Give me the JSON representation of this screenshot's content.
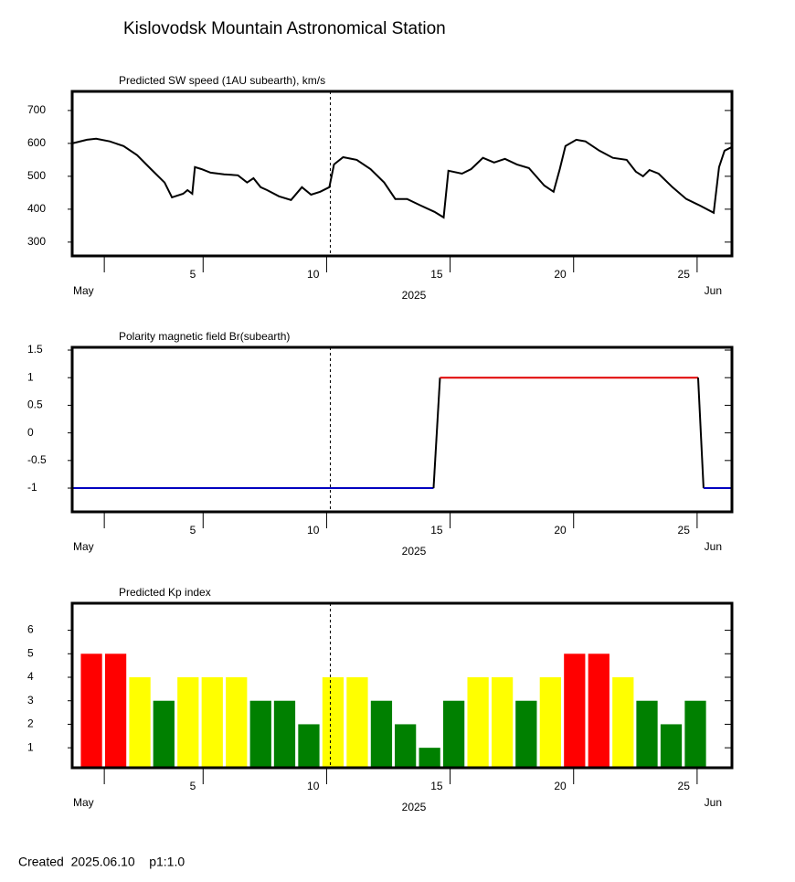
{
  "title": "Kislovodsk Mountain Astronomical Station",
  "footer": "Created  2025.06.10    p1:1.0",
  "chart_data": [
    {
      "type": "line",
      "title": "Predicted SW speed (1AU subearth), km/s",
      "xlim": [
        -0.3,
        26.41
      ],
      "xticks": [
        {
          "value": 1,
          "label": null
        },
        5,
        10,
        15,
        20,
        25
      ],
      "month_labels": [
        "May",
        "Jun"
      ],
      "xlabel": "2025",
      "marker_x": 10.15,
      "ylim": [
        258,
        758
      ],
      "yticks": [
        300,
        400,
        500,
        600,
        700
      ],
      "series": [
        {
          "color": "#000000",
          "x": [
            -0.3,
            0.3,
            0.67,
            1.22,
            1.78,
            2.33,
            2.89,
            3.44,
            3.74,
            4.19,
            4.37,
            4.56,
            4.67,
            4.93,
            5.3,
            5.85,
            6.41,
            6.78,
            7.04,
            7.33,
            7.59,
            8.07,
            8.56,
            9.0,
            9.37,
            9.74,
            10.11,
            10.3,
            10.67,
            11.22,
            11.78,
            12.33,
            12.78,
            13.26,
            13.81,
            14.37,
            14.74,
            14.93,
            15.48,
            15.85,
            16.33,
            16.78,
            17.22,
            17.7,
            18.19,
            18.81,
            19.19,
            19.44,
            19.67,
            20.11,
            20.48,
            21.04,
            21.59,
            22.15,
            22.52,
            22.81,
            23.07,
            23.44,
            24.0,
            24.56,
            25.11,
            25.67,
            25.89,
            26.11,
            26.41
          ],
          "values": [
            600,
            611,
            614,
            606,
            592,
            564,
            522,
            481,
            436,
            447,
            458,
            447,
            528,
            522,
            511,
            506,
            503,
            481,
            494,
            467,
            458,
            439,
            428,
            467,
            444,
            453,
            467,
            536,
            558,
            550,
            522,
            481,
            431,
            431,
            411,
            392,
            375,
            517,
            508,
            522,
            556,
            542,
            553,
            536,
            525,
            472,
            453,
            522,
            592,
            611,
            606,
            578,
            556,
            550,
            514,
            500,
            519,
            508,
            467,
            431,
            411,
            389,
            528,
            578,
            589
          ]
        }
      ]
    },
    {
      "type": "line",
      "title": "Polarity magnetic field  Br(subearth)",
      "xlim": [
        -0.3,
        26.41
      ],
      "xticks": [
        {
          "value": 1,
          "label": null
        },
        5,
        10,
        15,
        20,
        25
      ],
      "month_labels": [
        "May",
        "Jun"
      ],
      "xlabel": "2025",
      "marker_x": 10.15,
      "ylim": [
        -1.43,
        1.55
      ],
      "yticks": [
        -1,
        -0.5,
        0,
        0.5,
        1,
        1.5
      ],
      "series": [
        {
          "color": "#000000",
          "positive_color": "#e00000",
          "negative_color": "#0000c0",
          "x": [
            -0.3,
            14.33,
            14.59,
            25.04,
            25.26,
            26.41
          ],
          "values": [
            -1,
            -1,
            1,
            1,
            -1,
            -1
          ]
        }
      ]
    },
    {
      "type": "bar",
      "title": "Predicted Kp index",
      "xlim": [
        -0.3,
        26.41
      ],
      "xticks": [
        {
          "value": 1,
          "label": null
        },
        5,
        10,
        15,
        20,
        25
      ],
      "month_labels": [
        "May",
        "Jun"
      ],
      "xlabel": "2025",
      "marker_x": 10.15,
      "ylim": [
        0.15,
        7.15
      ],
      "yticks": [
        1,
        2,
        3,
        4,
        5,
        6
      ],
      "x": [
        0.48,
        1.46,
        2.44,
        3.41,
        4.39,
        5.37,
        6.35,
        7.33,
        8.3,
        9.28,
        10.26,
        11.24,
        12.22,
        13.19,
        14.17,
        15.15,
        16.13,
        17.11,
        18.08,
        19.06,
        20.04,
        21.02,
        22.0,
        22.97,
        23.95,
        24.93
      ],
      "values": [
        5,
        5,
        4,
        3,
        4,
        4,
        4,
        3,
        3,
        2,
        4,
        4,
        3,
        2,
        1,
        3,
        4,
        4,
        3,
        4,
        5,
        5,
        4,
        3,
        2,
        3
      ],
      "colors": [
        "#ff0000",
        "#ff0000",
        "#ffff00",
        "#008000",
        "#ffff00",
        "#ffff00",
        "#ffff00",
        "#008000",
        "#008000",
        "#008000",
        "#ffff00",
        "#ffff00",
        "#008000",
        "#008000",
        "#008000",
        "#008000",
        "#ffff00",
        "#ffff00",
        "#008000",
        "#ffff00",
        "#ff0000",
        "#ff0000",
        "#ffff00",
        "#008000",
        "#008000",
        "#008000"
      ]
    }
  ]
}
